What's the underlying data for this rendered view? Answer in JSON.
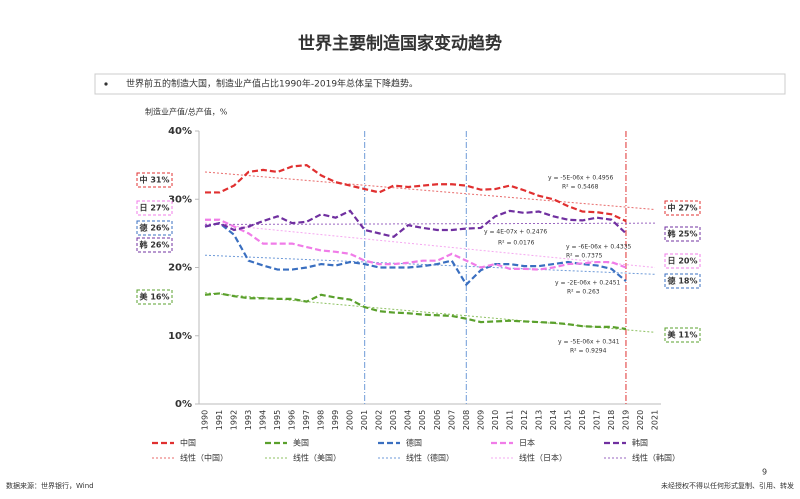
{
  "chart_data": {
    "type": "line",
    "title": "世界主要制造国家变动趋势",
    "subtitle": "世界前五的制造大国，制造业产值占比1990年-2019年总体呈下降趋势。",
    "y_label": "制造业产值/总产值，%",
    "x": [
      1990,
      1991,
      1992,
      1993,
      1994,
      1995,
      1996,
      1997,
      1998,
      1999,
      2000,
      2001,
      2002,
      2003,
      2004,
      2005,
      2006,
      2007,
      2008,
      2009,
      2010,
      2011,
      2012,
      2013,
      2014,
      2015,
      2016,
      2017,
      2018,
      2019,
      2020,
      2021
    ],
    "ylim": [
      0,
      40
    ],
    "yticks": [
      {
        "value": 0,
        "label": "0%"
      },
      {
        "value": 10,
        "label": "10%"
      },
      {
        "value": 20,
        "label": "20%"
      },
      {
        "value": 30,
        "label": "30%"
      },
      {
        "value": 40,
        "label": "40%"
      }
    ],
    "series": [
      {
        "name": "中国",
        "color": "#e03030",
        "values": [
          31,
          31,
          32,
          34,
          34.3,
          34,
          34.8,
          35,
          33.5,
          32.5,
          32,
          31.5,
          31,
          32,
          31.8,
          32,
          32.2,
          32.2,
          32,
          31.4,
          31.5,
          32,
          31.3,
          30.5,
          30,
          29,
          28.2,
          28.1,
          27.8,
          26.8,
          null,
          null
        ]
      },
      {
        "name": "美国",
        "color": "#5aa02c",
        "values": [
          16,
          16.2,
          15.8,
          15.5,
          15.5,
          15.4,
          15.4,
          15,
          16,
          15.6,
          15.3,
          14.2,
          13.6,
          13.4,
          13.3,
          13.1,
          13,
          12.9,
          12.5,
          12,
          12.1,
          12.2,
          12.1,
          12,
          11.9,
          11.7,
          11.4,
          11.3,
          11.3,
          11,
          null,
          null
        ]
      },
      {
        "name": "德国",
        "color": "#3a6fc0",
        "values": [
          26,
          26.5,
          24.8,
          21,
          20.3,
          19.7,
          19.7,
          20,
          20.5,
          20.3,
          20.8,
          20.5,
          20,
          20,
          20,
          20.2,
          20.5,
          21,
          17.5,
          19.6,
          20.5,
          20.5,
          20.2,
          20.2,
          20.5,
          20.8,
          20.5,
          20.3,
          19.8,
          18,
          null,
          null
        ]
      },
      {
        "name": "日本",
        "color": "#f07ce8",
        "values": [
          27,
          27,
          26,
          25,
          23.5,
          23.5,
          23.5,
          23,
          22.5,
          22.3,
          22,
          21,
          20.5,
          20.5,
          20.7,
          21,
          21,
          22,
          21,
          20,
          20.5,
          19.8,
          19.8,
          19.7,
          20,
          20.5,
          20.6,
          20.8,
          20.8,
          20,
          null,
          null
        ]
      },
      {
        "name": "韩国",
        "color": "#7030a0",
        "values": [
          26,
          26.5,
          25.5,
          26,
          26.8,
          27.5,
          26.5,
          26.7,
          27.8,
          27.3,
          28.3,
          25.5,
          25,
          24.5,
          26.2,
          25.8,
          25.5,
          25.5,
          25.7,
          25.8,
          27.5,
          28.3,
          28,
          28.2,
          27.5,
          27,
          26.9,
          27.3,
          27,
          25,
          null,
          null
        ]
      }
    ],
    "trendlines": [
      {
        "name": "线性（中国）",
        "color": "#e86a6a",
        "x": [
          1990,
          2021
        ],
        "values": [
          34,
          28.5
        ]
      },
      {
        "name": "线性（美国）",
        "color": "#8cc060",
        "x": [
          1990,
          2021
        ],
        "values": [
          16.3,
          10.5
        ]
      },
      {
        "name": "线性（德国）",
        "color": "#6e9ad8",
        "x": [
          1990,
          2021
        ],
        "values": [
          21.8,
          19
        ]
      },
      {
        "name": "线性（日本）",
        "color": "#f5a8f0",
        "x": [
          1990,
          2021
        ],
        "values": [
          26.5,
          20
        ]
      },
      {
        "name": "线性（韩国）",
        "color": "#9a66c0",
        "x": [
          1990,
          2021
        ],
        "values": [
          26.3,
          26.5
        ]
      }
    ],
    "reference_lines": [
      {
        "x": 2001,
        "color": "#6e9ad8"
      },
      {
        "x": 2008,
        "color": "#6e9ad8"
      },
      {
        "x": 2019,
        "color": "#e03030"
      }
    ],
    "annotations": [
      {
        "text": "y = -5E-06x + 0.4956",
        "color": "#e03030"
      },
      {
        "text": "R² = 0.5468",
        "color": "#e03030"
      },
      {
        "text": "y = 4E-07x + 0.2476",
        "color": "#7030a0"
      },
      {
        "text": "R² = 0.0176",
        "color": "#7030a0"
      },
      {
        "text": "y = -6E-06x + 0.4335",
        "color": "#f07ce8"
      },
      {
        "text": "R² = 0.7375",
        "color": "#f07ce8"
      },
      {
        "text": "y = -2E-06x + 0.2451",
        "color": "#3a6fc0"
      },
      {
        "text": "R² = 0.263",
        "color": "#3a6fc0"
      },
      {
        "text": "y = -5E-06x + 0.341",
        "color": "#5aa02c"
      },
      {
        "text": "R² = 0.9294",
        "color": "#5aa02c"
      }
    ],
    "callouts": [
      {
        "text": "中 31%",
        "color": "#e03030"
      },
      {
        "text": "日 27%",
        "color": "#f07ce8"
      },
      {
        "text": "德 26%",
        "color": "#3a6fc0"
      },
      {
        "text": "韩 26%",
        "color": "#7030a0"
      },
      {
        "text": "美 16%",
        "color": "#5aa02c"
      },
      {
        "text": "中 27%",
        "color": "#e03030"
      },
      {
        "text": "韩 25%",
        "color": "#7030a0"
      },
      {
        "text": "日 20%",
        "color": "#f07ce8"
      },
      {
        "text": "德 18%",
        "color": "#3a6fc0"
      },
      {
        "text": "美 11%",
        "color": "#5aa02c"
      }
    ]
  },
  "footer": {
    "source": "数据来源：世界银行，Wind",
    "page": "9",
    "notice": "未经授权不得以任何形式复制、引用、转发"
  }
}
